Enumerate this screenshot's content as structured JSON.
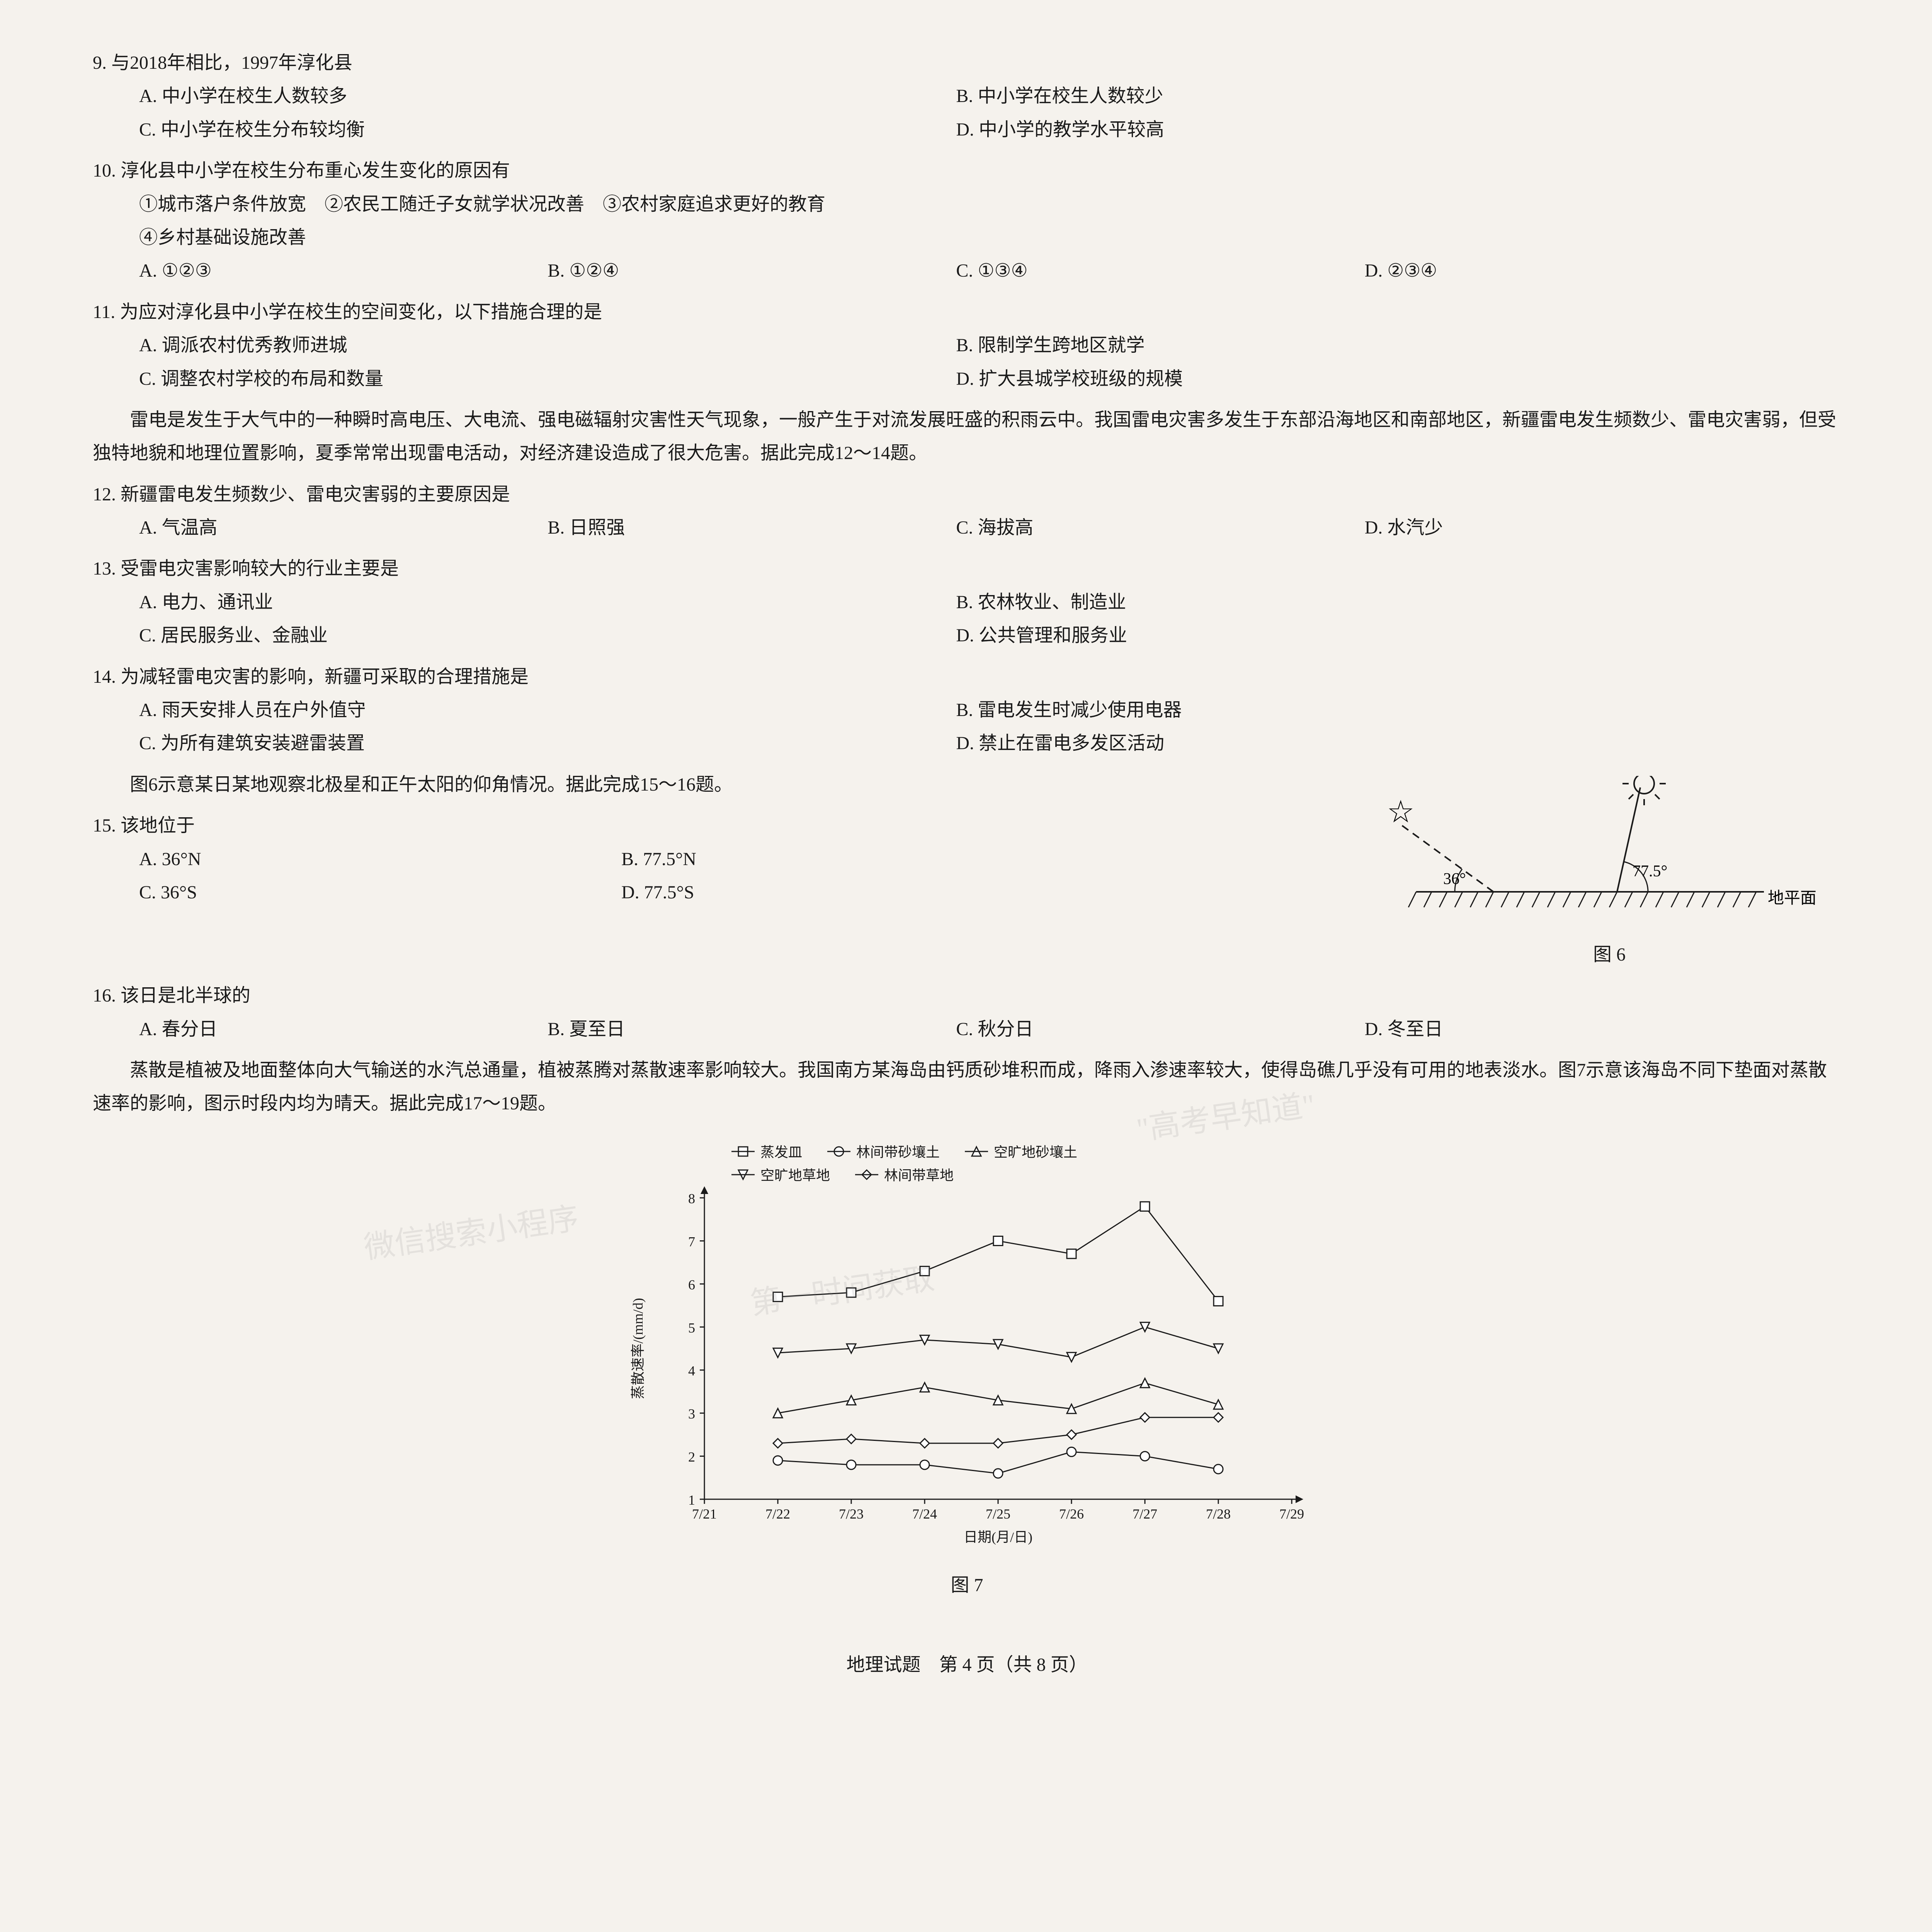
{
  "q9": {
    "stem": "9. 与2018年相比，1997年淳化县",
    "A": "A. 中小学在校生人数较多",
    "B": "B. 中小学在校生人数较少",
    "C": "C. 中小学在校生分布较均衡",
    "D": "D. 中小学的教学水平较高"
  },
  "q10": {
    "stem": "10. 淳化县中小学在校生分布重心发生变化的原因有",
    "cond1": "①城市落户条件放宽　②农民工随迁子女就学状况改善　③农村家庭追求更好的教育",
    "cond2": "④乡村基础设施改善",
    "A": "A. ①②③",
    "B": "B. ①②④",
    "C": "C. ①③④",
    "D": "D. ②③④"
  },
  "q11": {
    "stem": "11. 为应对淳化县中小学在校生的空间变化，以下措施合理的是",
    "A": "A. 调派农村优秀教师进城",
    "B": "B. 限制学生跨地区就学",
    "C": "C. 调整农村学校的布局和数量",
    "D": "D. 扩大县城学校班级的规模"
  },
  "passage12": "雷电是发生于大气中的一种瞬时高电压、大电流、强电磁辐射灾害性天气现象，一般产生于对流发展旺盛的积雨云中。我国雷电灾害多发生于东部沿海地区和南部地区，新疆雷电发生频数少、雷电灾害弱，但受独特地貌和地理位置影响，夏季常常出现雷电活动，对经济建设造成了很大危害。据此完成12～14题。",
  "q12": {
    "stem": "12. 新疆雷电发生频数少、雷电灾害弱的主要原因是",
    "A": "A. 气温高",
    "B": "B. 日照强",
    "C": "C. 海拔高",
    "D": "D. 水汽少"
  },
  "q13": {
    "stem": "13. 受雷电灾害影响较大的行业主要是",
    "A": "A. 电力、通讯业",
    "B": "B. 农林牧业、制造业",
    "C": "C. 居民服务业、金融业",
    "D": "D. 公共管理和服务业"
  },
  "q14": {
    "stem": "14. 为减轻雷电灾害的影响，新疆可采取的合理措施是",
    "A": "A. 雨天安排人员在户外值守",
    "B": "B. 雷电发生时减少使用电器",
    "C": "C. 为所有建筑安装避雷装置",
    "D": "D. 禁止在雷电多发区活动"
  },
  "passage15": "图6示意某日某地观察北极星和正午太阳的仰角情况。据此完成15～16题。",
  "q15": {
    "stem": "15. 该地位于",
    "A": "A. 36°N",
    "B": "B. 77.5°N",
    "C": "C. 36°S",
    "D": "D. 77.5°S"
  },
  "q16": {
    "stem": "16. 该日是北半球的",
    "A": "A. 春分日",
    "B": "B. 夏至日",
    "C": "C. 秋分日",
    "D": "D. 冬至日"
  },
  "passage17": "蒸散是植被及地面整体向大气输送的水汽总通量，植被蒸腾对蒸散速率影响较大。我国南方某海岛由钙质砂堆积而成，降雨入渗速率较大，使得岛礁几乎没有可用的地表淡水。图7示意该海岛不同下垫面对蒸散速率的影响，图示时段内均为晴天。据此完成17～19题。",
  "fig6": {
    "caption": "图 6",
    "angle1": "36°",
    "angle2": "77.5°",
    "ground_label": "地平面",
    "star_color": "#1a1a1a",
    "sun_color": "#1a1a1a",
    "line_color": "#1a1a1a",
    "hatch_color": "#1a1a1a"
  },
  "fig7": {
    "caption": "图 7",
    "type": "line",
    "ylabel": "蒸散速率/(mm/d)",
    "xlabel": "日期(月/日)",
    "ylim": [
      1,
      8
    ],
    "yticks": [
      1,
      2,
      3,
      4,
      5,
      6,
      7,
      8
    ],
    "xticks": [
      "7/21",
      "7/22",
      "7/23",
      "7/24",
      "7/25",
      "7/26",
      "7/27",
      "7/28",
      "7/29"
    ],
    "legend": [
      {
        "marker": "square",
        "label": "蒸发皿"
      },
      {
        "marker": "circle",
        "label": "林间带砂壤土"
      },
      {
        "marker": "triangle",
        "label": "空旷地砂壤土"
      },
      {
        "marker": "invtriangle",
        "label": "空旷地草地"
      },
      {
        "marker": "diamond",
        "label": "林间带草地"
      }
    ],
    "series": {
      "蒸发皿": {
        "marker": "square",
        "color": "#1a1a1a",
        "x": [
          1,
          2,
          3,
          4,
          5,
          6,
          7
        ],
        "y": [
          5.7,
          5.8,
          6.3,
          7.0,
          6.7,
          7.8,
          5.6
        ]
      },
      "空旷地草地": {
        "marker": "invtriangle",
        "color": "#1a1a1a",
        "x": [
          1,
          2,
          3,
          4,
          5,
          6,
          7
        ],
        "y": [
          4.4,
          4.5,
          4.7,
          4.6,
          4.3,
          5.0,
          4.5
        ]
      },
      "空旷地砂壤土": {
        "marker": "triangle",
        "color": "#1a1a1a",
        "x": [
          1,
          2,
          3,
          4,
          5,
          6,
          7
        ],
        "y": [
          3.0,
          3.3,
          3.6,
          3.3,
          3.1,
          3.7,
          3.2
        ]
      },
      "林间带草地": {
        "marker": "diamond",
        "color": "#1a1a1a",
        "x": [
          1,
          2,
          3,
          4,
          5,
          6,
          7
        ],
        "y": [
          2.3,
          2.4,
          2.3,
          2.3,
          2.5,
          2.9,
          2.9
        ]
      },
      "林间带砂壤土": {
        "marker": "circle",
        "color": "#1a1a1a",
        "x": [
          1,
          2,
          3,
          4,
          5,
          6,
          7
        ],
        "y": [
          1.9,
          1.8,
          1.8,
          1.6,
          2.1,
          2.0,
          1.7
        ]
      }
    },
    "axis_color": "#1a1a1a",
    "line_width": 3,
    "font_size": 36
  },
  "footer": "地理试题　第 4 页（共 8 页）",
  "watermark1": "微信搜索小程序",
  "watermark2": "\"高考早知道\"",
  "watermark3": "第一时间获取"
}
